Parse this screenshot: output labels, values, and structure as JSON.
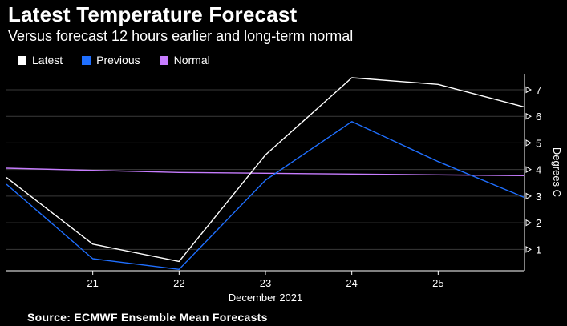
{
  "header": {
    "title": "Latest Temperature Forecast",
    "subtitle": "Versus forecast 12 hours earlier and long-term normal"
  },
  "legend": [
    {
      "label": "Latest",
      "color": "#ffffff"
    },
    {
      "label": "Previous",
      "color": "#1f6fff"
    },
    {
      "label": "Normal",
      "color": "#c77dff"
    }
  ],
  "footer": {
    "source": "Source: ECMWF Ensemble Mean Forecasts"
  },
  "chart_data": {
    "type": "line",
    "title": "Latest Temperature Forecast",
    "subtitle": "Versus forecast 12 hours earlier and long-term normal",
    "xlabel": "December 2021",
    "ylabel": "Degrees C",
    "x_ticks": [
      21,
      22,
      23,
      24,
      25
    ],
    "xlim": [
      20,
      26
    ],
    "y_ticks": [
      1,
      2,
      3,
      4,
      5,
      6,
      7
    ],
    "ylim": [
      0.2,
      7.6
    ],
    "y_axis_side": "right",
    "grid": true,
    "legend_position": "top-left",
    "series": [
      {
        "name": "Latest",
        "color": "#ffffff",
        "points": [
          [
            20,
            3.7
          ],
          [
            21,
            1.2
          ],
          [
            22,
            0.55
          ],
          [
            23,
            4.55
          ],
          [
            24,
            7.45
          ],
          [
            25,
            7.2
          ],
          [
            26,
            6.35
          ]
        ]
      },
      {
        "name": "Previous",
        "color": "#1f6fff",
        "points": [
          [
            20,
            3.45
          ],
          [
            21,
            0.65
          ],
          [
            22,
            0.25
          ],
          [
            23,
            3.6
          ],
          [
            24,
            5.8
          ],
          [
            25,
            4.3
          ],
          [
            26,
            2.95
          ]
        ]
      },
      {
        "name": "Normal",
        "color": "#c77dff",
        "points": [
          [
            20,
            4.05
          ],
          [
            21,
            3.97
          ],
          [
            22,
            3.89
          ],
          [
            23,
            3.86
          ],
          [
            24,
            3.83
          ],
          [
            25,
            3.8
          ],
          [
            26,
            3.77
          ]
        ]
      }
    ]
  }
}
